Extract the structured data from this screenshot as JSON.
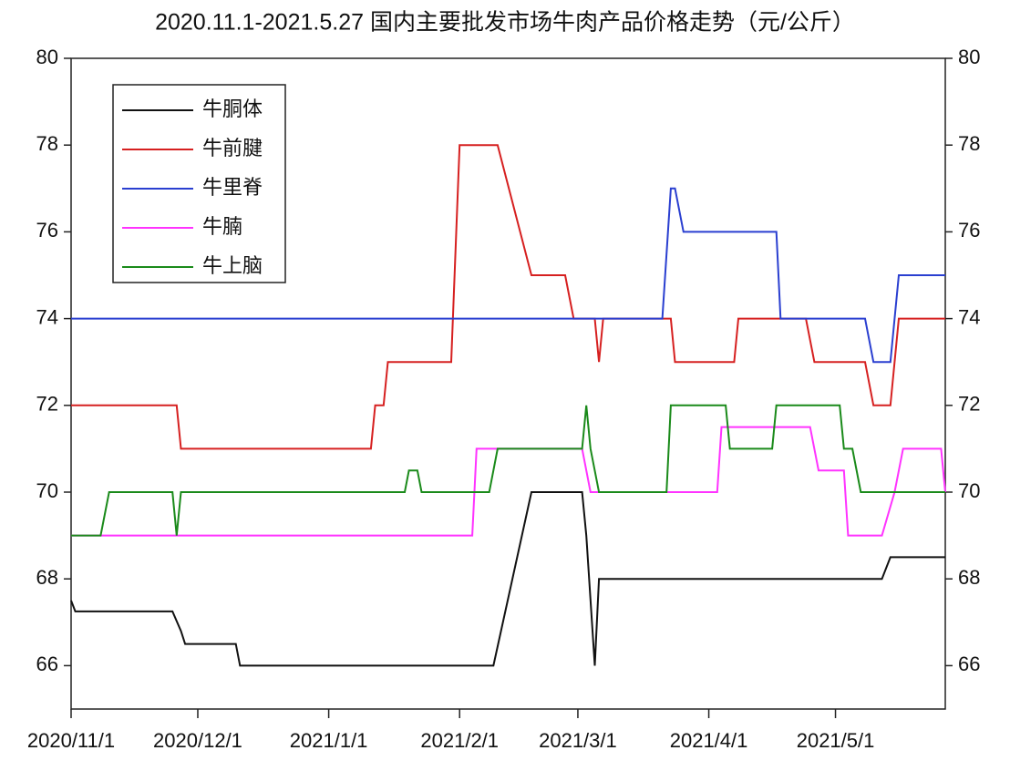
{
  "chart_data": {
    "type": "line",
    "title": "2020.11.1-2021.5.27 国内主要批发市场牛肉产品价格走势（元/公斤）",
    "xlim": [
      "2020-11-01",
      "2021-05-27"
    ],
    "xticks": [
      {
        "value": "2020-11-01",
        "label": "2020/11/1"
      },
      {
        "value": "2020-12-01",
        "label": "2020/12/1"
      },
      {
        "value": "2021-01-01",
        "label": "2021/1/1"
      },
      {
        "value": "2021-02-01",
        "label": "2021/2/1"
      },
      {
        "value": "2021-03-01",
        "label": "2021/3/1"
      },
      {
        "value": "2021-04-01",
        "label": "2021/4/1"
      },
      {
        "value": "2021-05-01",
        "label": "2021/5/1"
      }
    ],
    "ylim": [
      65,
      80
    ],
    "yticks": [
      66,
      68,
      70,
      72,
      74,
      76,
      78,
      80
    ],
    "y2lim": [
      65,
      80
    ],
    "y2ticks": [
      66,
      68,
      70,
      72,
      74,
      76,
      78,
      80
    ],
    "legend": "upper left",
    "series": [
      {
        "name": "牛胴体",
        "color": "#111111",
        "x": [
          "2020-11-01",
          "2020-11-02",
          "2020-11-25",
          "2020-11-27",
          "2020-11-28",
          "2020-12-10",
          "2020-12-11",
          "2021-02-09",
          "2021-02-18",
          "2021-03-02",
          "2021-03-03",
          "2021-03-05",
          "2021-03-06",
          "2021-05-12",
          "2021-05-14",
          "2021-05-27"
        ],
        "values": [
          67.5,
          67.25,
          67.25,
          66.8,
          66.5,
          66.5,
          66,
          66,
          70,
          70,
          69,
          66,
          68,
          68,
          68.5,
          68.5
        ]
      },
      {
        "name": "牛前腱",
        "color": "#d62020",
        "x": [
          "2020-11-01",
          "2020-11-26",
          "2020-11-27",
          "2021-01-11",
          "2021-01-12",
          "2021-01-14",
          "2021-01-15",
          "2021-01-30",
          "2021-02-01",
          "2021-02-10",
          "2021-02-18",
          "2021-02-26",
          "2021-02-28",
          "2021-03-05",
          "2021-03-06",
          "2021-03-07",
          "2021-03-23",
          "2021-03-24",
          "2021-04-07",
          "2021-04-08",
          "2021-04-24",
          "2021-04-26",
          "2021-05-08",
          "2021-05-10",
          "2021-05-14",
          "2021-05-16",
          "2021-05-27"
        ],
        "values": [
          72,
          72,
          71,
          71,
          72,
          72,
          73,
          73,
          78,
          78,
          75,
          75,
          74,
          74,
          73,
          74,
          74,
          73,
          73,
          74,
          74,
          73,
          73,
          72,
          72,
          74,
          74
        ]
      },
      {
        "name": "牛里脊",
        "color": "#2a3fd0",
        "x": [
          "2020-11-01",
          "2021-03-21",
          "2021-03-23",
          "2021-03-24",
          "2021-03-26",
          "2021-04-17",
          "2021-04-18",
          "2021-05-08",
          "2021-05-10",
          "2021-05-14",
          "2021-05-16",
          "2021-05-27"
        ],
        "values": [
          74,
          74,
          77,
          77,
          76,
          76,
          74,
          74,
          73,
          73,
          75,
          75
        ]
      },
      {
        "name": "牛腩",
        "color": "#ff33ff",
        "x": [
          "2020-11-01",
          "2021-02-04",
          "2021-02-05",
          "2021-03-02",
          "2021-03-04",
          "2021-04-03",
          "2021-04-04",
          "2021-04-25",
          "2021-04-27",
          "2021-05-03",
          "2021-05-04",
          "2021-05-12",
          "2021-05-15",
          "2021-05-17",
          "2021-05-26",
          "2021-05-27"
        ],
        "values": [
          69,
          69,
          71,
          71,
          70,
          70,
          71.5,
          71.5,
          70.5,
          70.5,
          69,
          69,
          70,
          71,
          71,
          70
        ]
      },
      {
        "name": "牛上脑",
        "color": "#1a8a1a",
        "x": [
          "2020-11-01",
          "2020-11-08",
          "2020-11-10",
          "2020-11-25",
          "2020-11-26",
          "2020-11-27",
          "2021-01-19",
          "2021-01-20",
          "2021-01-22",
          "2021-01-23",
          "2021-02-08",
          "2021-02-10",
          "2021-03-02",
          "2021-03-03",
          "2021-03-04",
          "2021-03-06",
          "2021-03-22",
          "2021-03-23",
          "2021-04-05",
          "2021-04-06",
          "2021-04-16",
          "2021-04-17",
          "2021-05-02",
          "2021-05-03",
          "2021-05-05",
          "2021-05-07",
          "2021-05-27"
        ],
        "values": [
          69,
          69,
          70,
          70,
          69,
          70,
          70,
          70.5,
          70.5,
          70,
          70,
          71,
          71,
          72,
          71,
          70,
          70,
          72,
          72,
          71,
          71,
          72,
          72,
          71,
          71,
          70,
          70
        ]
      }
    ]
  }
}
